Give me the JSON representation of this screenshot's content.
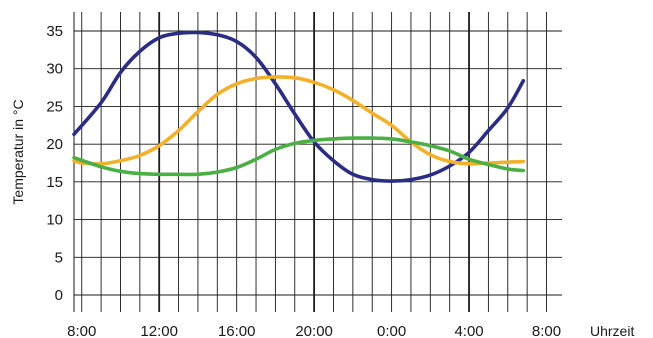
{
  "chart_data": {
    "type": "line",
    "title": "",
    "xlabel": "Uhrzeit",
    "ylabel": "Temperatur in °C",
    "x_ticks": [
      "8:00",
      "12:00",
      "16:00",
      "20:00",
      "0:00",
      "4:00",
      "8:00"
    ],
    "x_hours": [
      0,
      4,
      8,
      12,
      16,
      20,
      24
    ],
    "x_range_hours": [
      -0.4,
      24.8
    ],
    "y_ticks": [
      0,
      5,
      10,
      15,
      20,
      25,
      30,
      35
    ],
    "ylim": [
      0,
      35
    ],
    "grid": true,
    "legend": "none",
    "x_origin_label": "8:00",
    "series": [
      {
        "color": "#2b2c84",
        "points": [
          [
            -0.4,
            21.3
          ],
          [
            1,
            25.5
          ],
          [
            2,
            29.5
          ],
          [
            3,
            32.3
          ],
          [
            4,
            34.1
          ],
          [
            5,
            34.7
          ],
          [
            6,
            34.8
          ],
          [
            7,
            34.5
          ],
          [
            8,
            33.6
          ],
          [
            9,
            31.5
          ],
          [
            10,
            28.0
          ],
          [
            11,
            24.0
          ],
          [
            12,
            20.3
          ],
          [
            13,
            17.8
          ],
          [
            14,
            16.0
          ],
          [
            15,
            15.3
          ],
          [
            16,
            15.1
          ],
          [
            17,
            15.3
          ],
          [
            18,
            15.9
          ],
          [
            19,
            17.1
          ],
          [
            20,
            18.9
          ],
          [
            21,
            21.8
          ],
          [
            22,
            24.8
          ],
          [
            22.8,
            28.4
          ]
        ]
      },
      {
        "color": "#f3b12a",
        "points": [
          [
            -0.4,
            17.8
          ],
          [
            0,
            17.5
          ],
          [
            1,
            17.4
          ],
          [
            2,
            17.8
          ],
          [
            3,
            18.5
          ],
          [
            4,
            19.8
          ],
          [
            5,
            21.8
          ],
          [
            6,
            24.3
          ],
          [
            7,
            26.6
          ],
          [
            8,
            28.0
          ],
          [
            9,
            28.7
          ],
          [
            10,
            28.9
          ],
          [
            11,
            28.8
          ],
          [
            12,
            28.2
          ],
          [
            13,
            27.2
          ],
          [
            14,
            25.8
          ],
          [
            15,
            24.1
          ],
          [
            16,
            22.5
          ],
          [
            17,
            20.3
          ],
          [
            18,
            18.6
          ],
          [
            19,
            17.7
          ],
          [
            20,
            17.4
          ],
          [
            21,
            17.5
          ],
          [
            22,
            17.6
          ],
          [
            22.8,
            17.7
          ]
        ]
      },
      {
        "color": "#4caf46",
        "points": [
          [
            -0.4,
            18.2
          ],
          [
            1,
            17.0
          ],
          [
            2,
            16.4
          ],
          [
            3,
            16.1
          ],
          [
            4,
            16.0
          ],
          [
            5,
            16.0
          ],
          [
            6,
            16.0
          ],
          [
            7,
            16.3
          ],
          [
            8,
            16.9
          ],
          [
            9,
            18.0
          ],
          [
            10,
            19.3
          ],
          [
            11,
            20.1
          ],
          [
            12,
            20.5
          ],
          [
            13,
            20.7
          ],
          [
            14,
            20.8
          ],
          [
            15,
            20.8
          ],
          [
            16,
            20.7
          ],
          [
            17,
            20.3
          ],
          [
            18,
            19.8
          ],
          [
            19,
            19.1
          ],
          [
            20,
            18.0
          ],
          [
            21,
            17.3
          ],
          [
            22,
            16.7
          ],
          [
            22.8,
            16.5
          ]
        ]
      }
    ]
  }
}
